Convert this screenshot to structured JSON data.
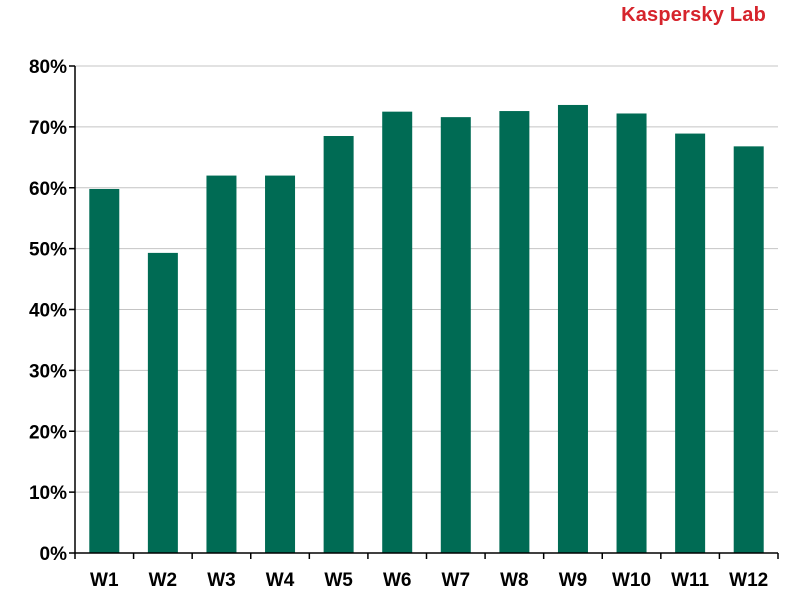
{
  "brand": {
    "label": "Kaspersky Lab",
    "color": "#d6242c"
  },
  "chart_data": {
    "type": "bar",
    "title": "",
    "xlabel": "",
    "ylabel": "",
    "categories": [
      "W1",
      "W2",
      "W3",
      "W4",
      "W5",
      "W6",
      "W7",
      "W8",
      "W9",
      "W10",
      "W11",
      "W12"
    ],
    "series": [
      {
        "values": [
          59.8,
          49.3,
          62.0,
          62.0,
          68.5,
          72.5,
          71.6,
          72.6,
          73.6,
          72.2,
          68.9,
          66.8
        ],
        "color": "#006b54"
      }
    ],
    "ylim": [
      0,
      80
    ],
    "yticks": [
      0,
      10,
      20,
      30,
      40,
      50,
      60,
      70,
      80
    ],
    "ytick_labels": [
      "0%",
      "10%",
      "20%",
      "30%",
      "40%",
      "50%",
      "60%",
      "70%",
      "80%"
    ],
    "grid": true,
    "legend": "none"
  }
}
